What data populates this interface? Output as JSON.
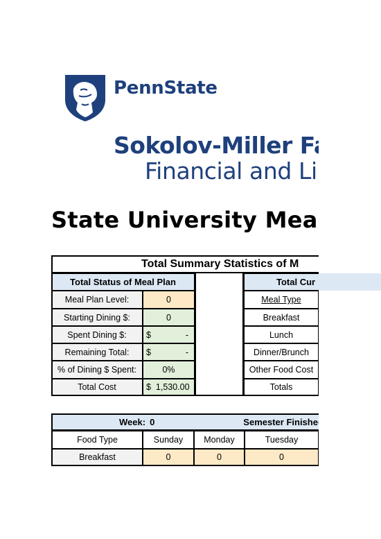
{
  "header": {
    "brand": "PennState",
    "college": "Sokolov-Miller Fa",
    "office": "Financial and Li",
    "page_title": "State University Meal"
  },
  "summary": {
    "title": "Total Summary Statistics of M",
    "status_header": "Total Status of Meal Plan",
    "current_header": "Total Cur",
    "rows": [
      {
        "label": "Meal Plan Level:",
        "value": "0"
      },
      {
        "label": "Starting Dining $:",
        "value": "0"
      },
      {
        "label": "Spent Dining $:",
        "currency": "$",
        "value": "-"
      },
      {
        "label": "Remaining Total:",
        "currency": "$",
        "value": "-"
      },
      {
        "label": "% of Dining $ Spent:",
        "value": "0%"
      },
      {
        "label": "Total Cost",
        "currency": "$",
        "value": "1,530.00"
      }
    ],
    "meal_types": [
      "Meal Type",
      "Breakfast",
      "Lunch",
      "Dinner/Brunch",
      "Other Food Cost",
      "Totals"
    ]
  },
  "week_table": {
    "week_label": "Week:",
    "week_value": "0",
    "semester_label": "Semester Finished:",
    "columns": [
      "Food Type",
      "Sunday",
      "Monday",
      "Tuesday"
    ],
    "rows": [
      {
        "food": "Breakfast",
        "values": [
          "0",
          "0",
          "0"
        ]
      }
    ]
  },
  "colors": {
    "brand_blue": "#1e407c",
    "header_blue": "#dde8f5",
    "value_orange": "#fde9c6",
    "value_green": "#e2efda"
  }
}
